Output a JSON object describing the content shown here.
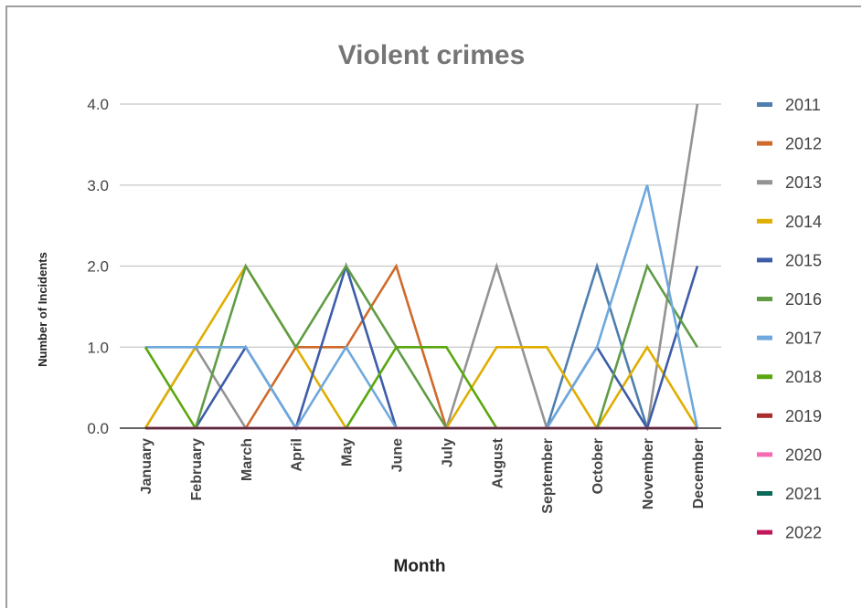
{
  "chart_data": {
    "type": "line",
    "title": "Violent crimes",
    "xlabel": "Month",
    "ylabel": "Number of Incidents",
    "categories": [
      "January",
      "February",
      "March",
      "April",
      "May",
      "June",
      "July",
      "August",
      "September",
      "October",
      "November",
      "December"
    ],
    "ylim": [
      0,
      4
    ],
    "yticks": [
      "0.0",
      "1.0",
      "2.0",
      "3.0",
      "4.0"
    ],
    "grid": true,
    "legend_position": "right",
    "series": [
      {
        "name": "2011",
        "color": "#4e7fae",
        "values": [
          0,
          0,
          0,
          0,
          0,
          0,
          0,
          0,
          0,
          2,
          0,
          0
        ]
      },
      {
        "name": "2012",
        "color": "#cf6a2b",
        "values": [
          0,
          0,
          0,
          1,
          1,
          2,
          0,
          0,
          0,
          0,
          0,
          0
        ]
      },
      {
        "name": "2013",
        "color": "#939393",
        "values": [
          0,
          1,
          0,
          0,
          0,
          0,
          0,
          2,
          0,
          0,
          0,
          4
        ]
      },
      {
        "name": "2014",
        "color": "#dfae00",
        "values": [
          0,
          1,
          2,
          1,
          0,
          0,
          0,
          1,
          1,
          0,
          1,
          0
        ]
      },
      {
        "name": "2015",
        "color": "#3d5da8",
        "values": [
          0,
          0,
          1,
          0,
          2,
          0,
          0,
          0,
          0,
          1,
          0,
          2
        ]
      },
      {
        "name": "2016",
        "color": "#5f9c45",
        "values": [
          0,
          0,
          2,
          1,
          2,
          1,
          0,
          0,
          0,
          0,
          2,
          1
        ]
      },
      {
        "name": "2017",
        "color": "#6fa8dc",
        "values": [
          1,
          1,
          1,
          0,
          1,
          0,
          0,
          0,
          0,
          1,
          3,
          0
        ]
      },
      {
        "name": "2018",
        "color": "#5aa70f",
        "values": [
          1,
          0,
          0,
          0,
          0,
          1,
          1,
          0,
          0,
          0,
          0,
          0
        ]
      },
      {
        "name": "2019",
        "color": "#a82d2d",
        "values": [
          0,
          0,
          0,
          0,
          0,
          0,
          0,
          0,
          0,
          0,
          0,
          0
        ]
      },
      {
        "name": "2020",
        "color": "#f66bb1",
        "values": [
          0,
          0,
          0,
          0,
          0,
          0,
          0,
          0,
          0,
          0,
          0,
          0
        ]
      },
      {
        "name": "2021",
        "color": "#0a6a58",
        "values": [
          0,
          0,
          0,
          0,
          0,
          0,
          0,
          0,
          0,
          0,
          0,
          0
        ]
      },
      {
        "name": "2022",
        "color": "#c2185b",
        "values": [
          0,
          0,
          0,
          0,
          0,
          0,
          0,
          0,
          0,
          0,
          0,
          0
        ]
      }
    ]
  }
}
